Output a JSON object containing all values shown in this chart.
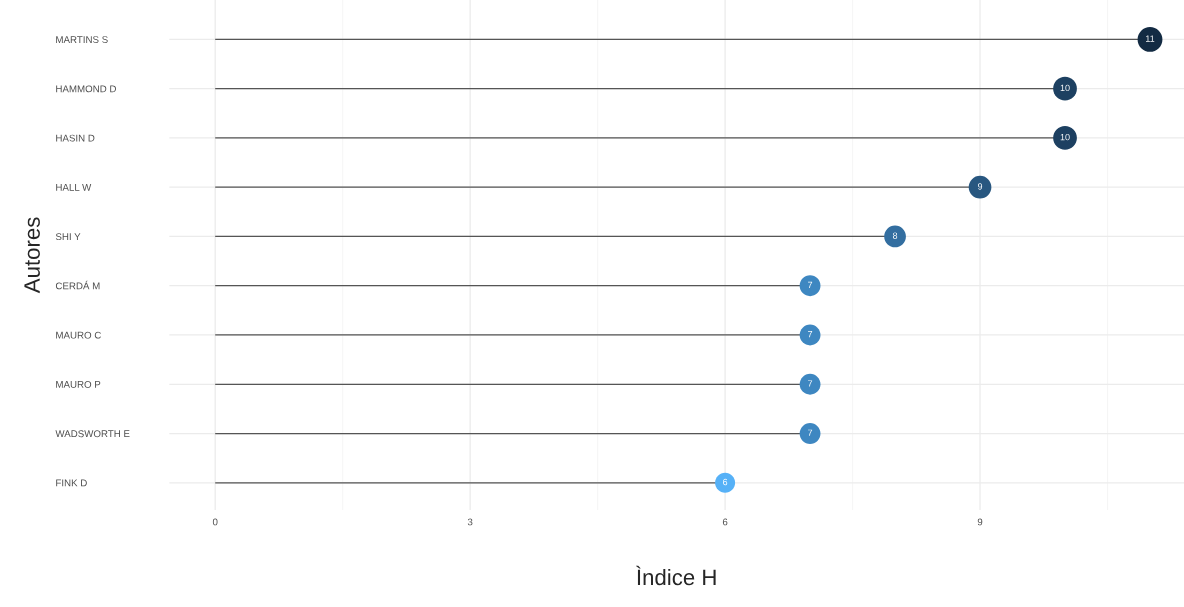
{
  "chart_data": {
    "type": "lollipop",
    "orientation": "horizontal",
    "xlabel": "Ìndice H",
    "ylabel": "Autores",
    "categories": [
      "MARTINS S",
      "HAMMOND D",
      "HASIN D",
      "HALL W",
      "SHI Y",
      "CERDÁ M",
      "MAURO C",
      "MAURO P",
      "WADSWORTH E",
      "FINK D"
    ],
    "values": [
      11,
      10,
      10,
      9,
      8,
      7,
      7,
      7,
      7,
      6
    ],
    "colors": [
      "#132b43",
      "#1d4061",
      "#1d4061",
      "#285780",
      "#336ea0",
      "#3e87c1",
      "#3e87c1",
      "#3e87c1",
      "#3e87c1",
      "#56b1f7"
    ],
    "xlim": [
      -0.54,
      11.4
    ],
    "xticks": [
      0,
      3,
      6,
      9
    ],
    "grid": true,
    "data_labels": true,
    "legend": false
  }
}
